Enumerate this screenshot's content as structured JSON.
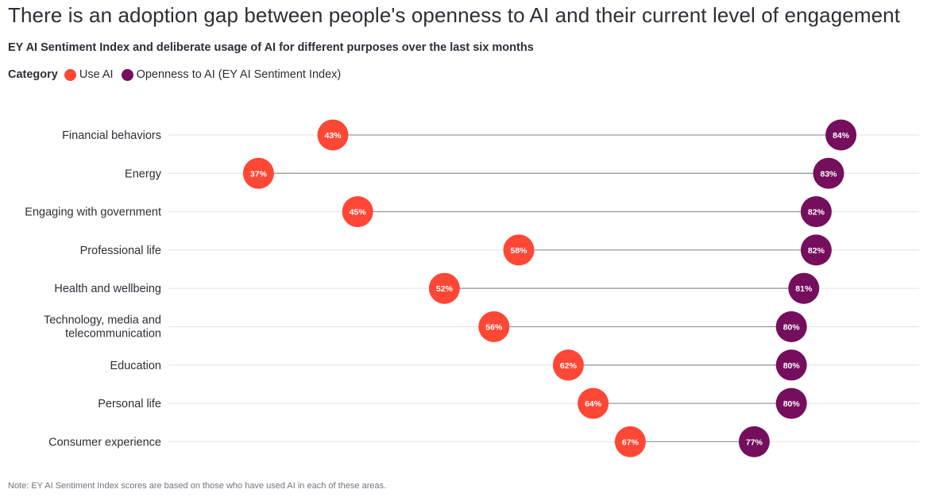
{
  "title": "There is an adoption gap between people's openness to AI and their current level of engagement",
  "subtitle": "EY AI Sentiment Index and deliberate usage of AI for different purposes over the last six months",
  "legend": {
    "title": "Category",
    "items": [
      {
        "label": "Use AI",
        "color": "#ff4736"
      },
      {
        "label": "Openness to AI (EY AI Sentiment Index)",
        "color": "#750e5c"
      }
    ]
  },
  "note": "Note: EY AI Sentiment Index scores are based on those who have used AI in each of these areas.",
  "chart_data": {
    "type": "dumbbell",
    "categories": [
      "Financial behaviors",
      "Energy",
      "Engaging with government",
      "Professional life",
      "Health and wellbeing",
      "Technology, media and telecommunication",
      "Education",
      "Personal life",
      "Consumer experience"
    ],
    "series": [
      {
        "name": "Use AI",
        "color": "#ff4736",
        "values": [
          43,
          37,
          45,
          58,
          52,
          56,
          62,
          64,
          67
        ]
      },
      {
        "name": "Openness to AI (EY AI Sentiment Index)",
        "color": "#750e5c",
        "values": [
          84,
          83,
          82,
          82,
          81,
          80,
          80,
          80,
          77
        ]
      }
    ],
    "value_suffix": "%",
    "grid": true
  }
}
